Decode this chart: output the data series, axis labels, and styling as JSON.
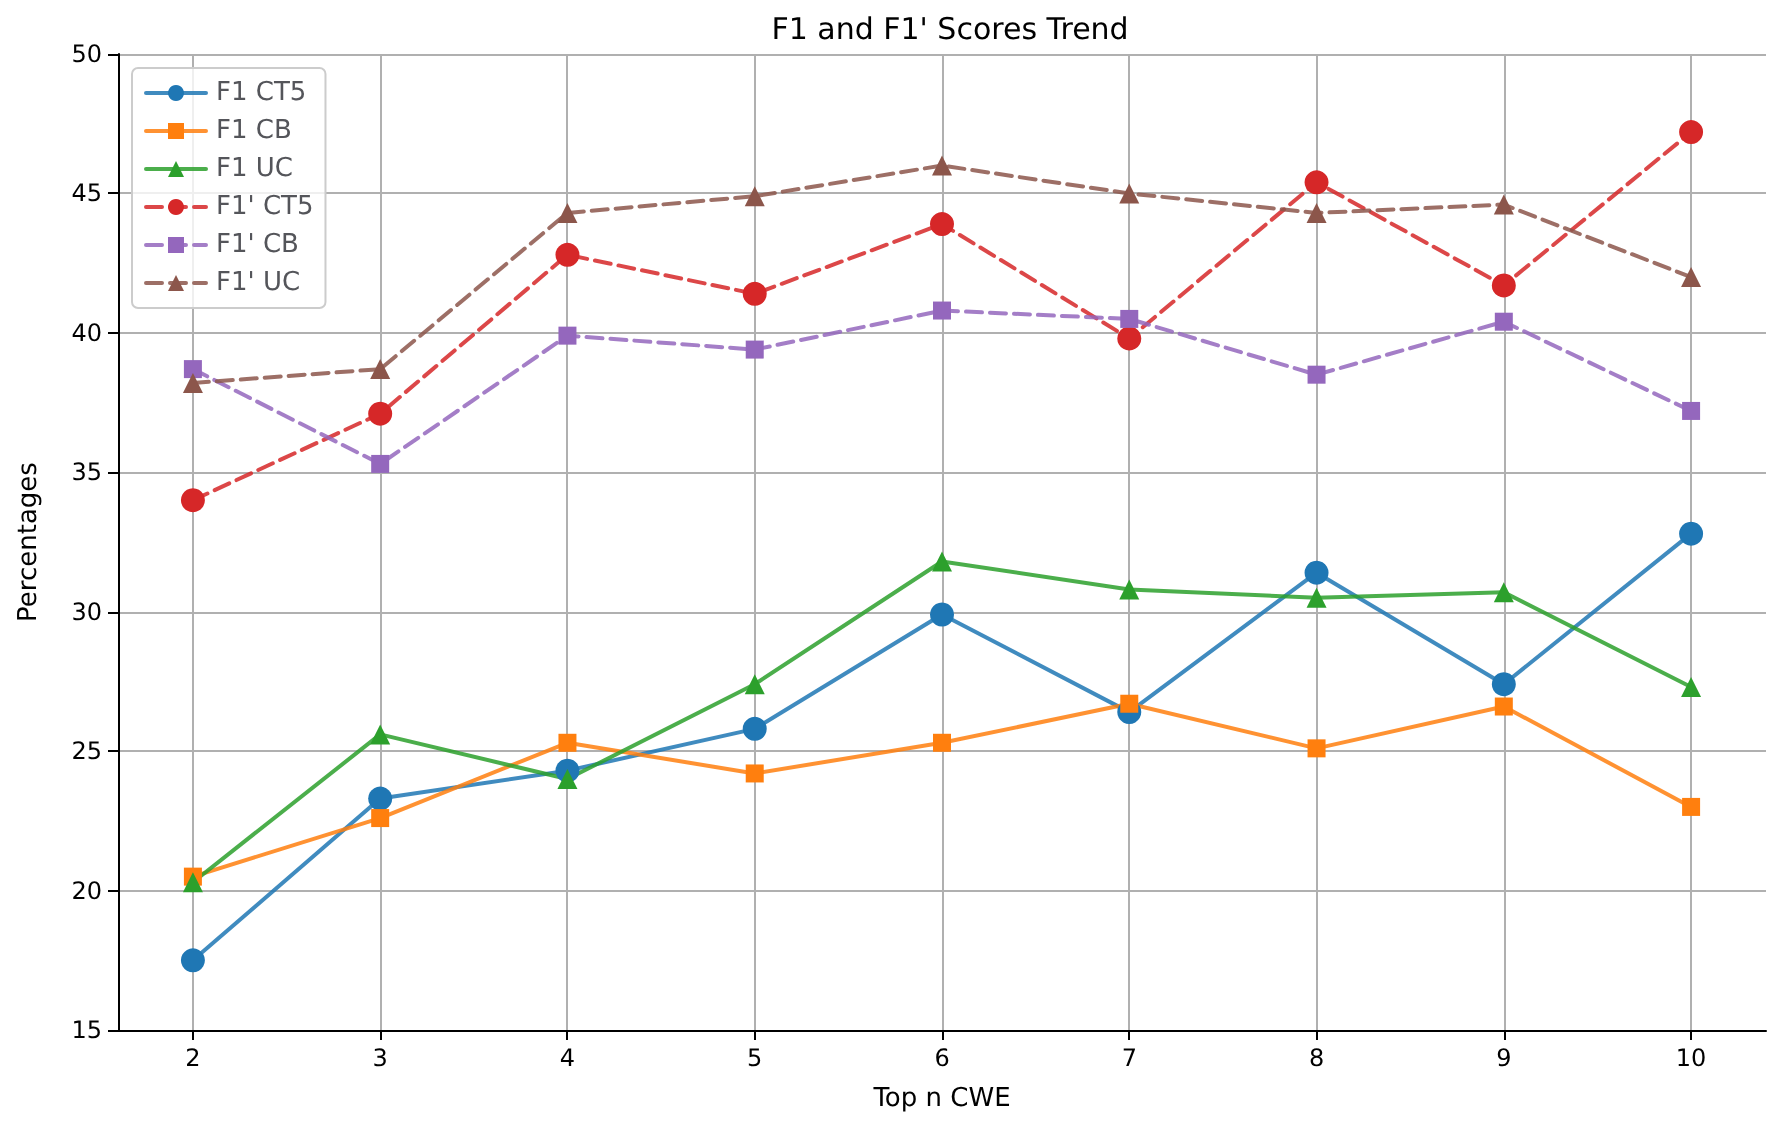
{
  "chart_data": {
    "type": "line",
    "title": "F1 and F1' Scores Trend",
    "xlabel": "Top n CWE",
    "ylabel": "Percentages",
    "x": [
      2,
      3,
      4,
      5,
      6,
      7,
      8,
      9,
      10
    ],
    "xlim": [
      1.6,
      10.4
    ],
    "xticks": [
      2,
      3,
      4,
      5,
      6,
      7,
      8,
      9,
      10
    ],
    "ylim": [
      15,
      50
    ],
    "yticks": [
      15,
      20,
      25,
      30,
      35,
      40,
      45,
      50
    ],
    "grid": true,
    "legend": "top left",
    "series": [
      {
        "name": "F1 CT5",
        "color": "#1f77b4",
        "marker": "circle",
        "line_style": "solid",
        "values": [
          17.5,
          23.3,
          24.3,
          25.8,
          29.9,
          26.4,
          31.4,
          27.4,
          32.8
        ]
      },
      {
        "name": "F1 CB",
        "color": "#ff7f0e",
        "marker": "square",
        "line_style": "solid",
        "values": [
          20.5,
          22.6,
          25.3,
          24.2,
          25.3,
          26.7,
          25.1,
          26.6,
          23.0
        ]
      },
      {
        "name": "F1 UC",
        "color": "#2ca02c",
        "marker": "triangle",
        "line_style": "solid",
        "values": [
          20.3,
          25.6,
          24.0,
          27.4,
          31.8,
          30.8,
          30.5,
          30.7,
          27.3
        ]
      },
      {
        "name": "F1' CT5",
        "color": "#d62728",
        "marker": "circle",
        "line_style": "dashed",
        "values": [
          34.0,
          37.1,
          42.8,
          41.4,
          43.9,
          39.8,
          45.4,
          41.7,
          47.2
        ]
      },
      {
        "name": "F1' CB",
        "color": "#9467bd",
        "marker": "square",
        "line_style": "dashed",
        "values": [
          38.7,
          35.3,
          39.9,
          39.4,
          40.8,
          40.5,
          38.5,
          40.4,
          37.2
        ]
      },
      {
        "name": "F1' UC",
        "color": "#8c564b",
        "marker": "triangle",
        "line_style": "dashed",
        "values": [
          38.2,
          38.7,
          44.3,
          44.9,
          46.0,
          45.0,
          44.3,
          44.6,
          42.0
        ]
      }
    ]
  }
}
